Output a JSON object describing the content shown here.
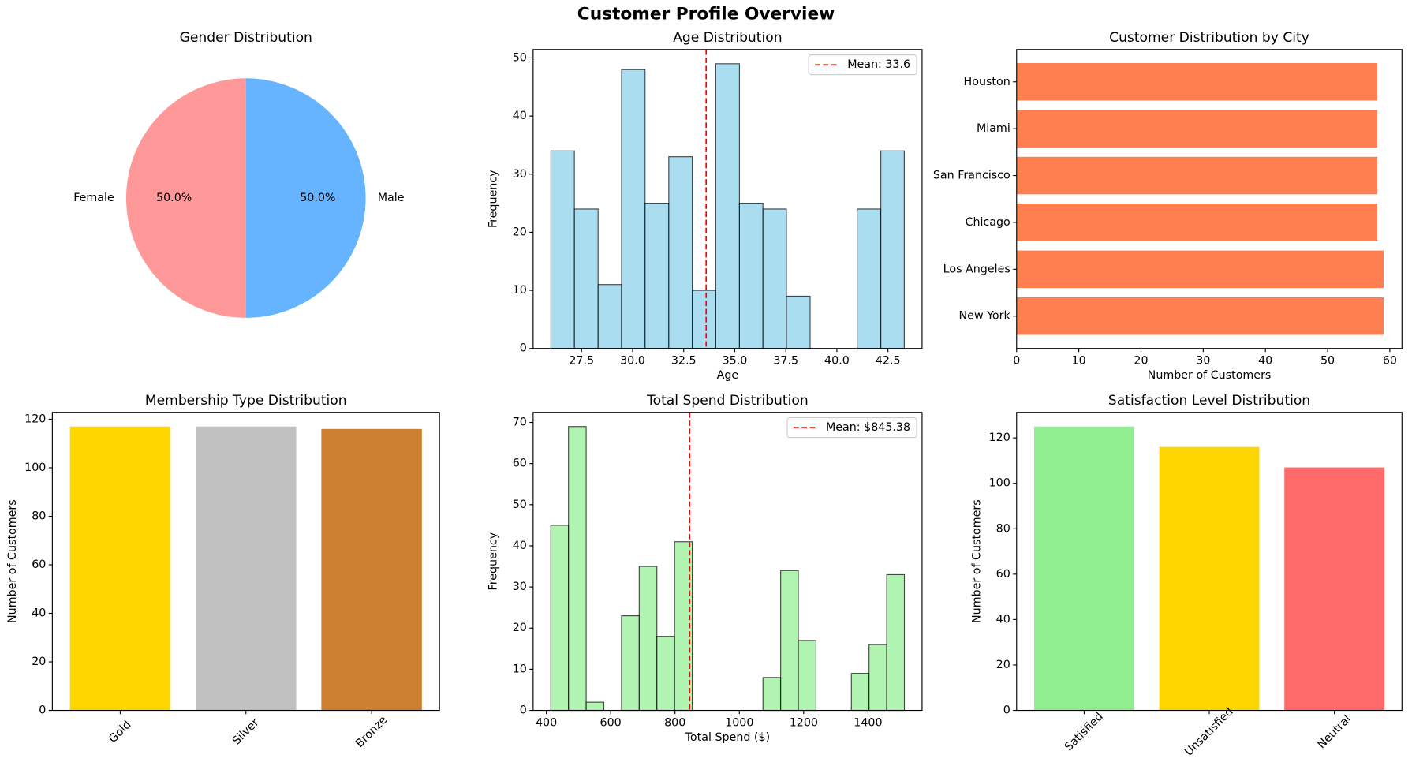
{
  "title": "Customer Profile Overview",
  "chart_data": [
    {
      "type": "pie",
      "title": "Gender Distribution",
      "categories": [
        "Female",
        "Male"
      ],
      "values": [
        50,
        50
      ],
      "value_labels": [
        "50.0%",
        "50.0%"
      ],
      "colors": [
        "#ff9999",
        "#66b3ff"
      ]
    },
    {
      "type": "histogram",
      "title": "Age Distribution",
      "xlabel": "Age",
      "ylabel": "Frequency",
      "color": "#87ceeb",
      "bins": [
        26,
        27.15,
        28.31,
        29.46,
        30.61,
        31.77,
        32.92,
        34.07,
        35.23,
        36.38,
        37.53,
        38.69,
        39.84,
        40.99,
        42.15,
        43.3
      ],
      "values": [
        34,
        24,
        11,
        48,
        25,
        33,
        10,
        49,
        25,
        24,
        9,
        0,
        0,
        24,
        34
      ],
      "mean": 33.6,
      "mean_label": "Mean: 33.6",
      "mean_color": "#ff0000",
      "xlim": [
        25.13,
        44.17
      ],
      "xticks": [
        27.5,
        {
          "value": 30,
          "label": "30.0"
        },
        32.5,
        {
          "value": 35,
          "label": "35.0"
        },
        37.5,
        {
          "value": 40,
          "label": "40.0"
        },
        42.5
      ],
      "ylim": [
        0,
        51.45
      ],
      "yticks": [
        0,
        10,
        20,
        30,
        40,
        50
      ]
    },
    {
      "type": "barh",
      "title": "Customer Distribution by City",
      "xlabel": "Number of Customers",
      "color": "#ff7f50",
      "categories": [
        "New York",
        "Los Angeles",
        "Chicago",
        "San Francisco",
        "Miami",
        "Houston"
      ],
      "values": [
        59,
        59,
        58,
        58,
        58,
        58
      ],
      "xlim": [
        0,
        61.95
      ],
      "xticks": [
        0,
        10,
        20,
        30,
        40,
        50,
        60
      ]
    },
    {
      "type": "bar",
      "title": "Membership Type Distribution",
      "ylabel": "Number of Customers",
      "categories": [
        "Gold",
        "Silver",
        "Bronze"
      ],
      "values": [
        117,
        117,
        116
      ],
      "colors": [
        "#ffd700",
        "#c0c0c0",
        "#cd7f32"
      ],
      "ylim": [
        0,
        122.85
      ],
      "yticks": [
        0,
        20,
        40,
        60,
        80,
        100,
        120
      ]
    },
    {
      "type": "histogram",
      "title": "Total Spend Distribution",
      "xlabel": "Total Spend ($)",
      "ylabel": "Frequency",
      "color": "#90ee90",
      "bins": [
        414,
        468.95,
        523.9,
        578.85,
        633.8,
        688.75,
        743.7,
        798.65,
        853.6,
        908.55,
        963.5,
        1018.45,
        1073.4,
        1128.35,
        1183.3,
        1238.25,
        1293.2,
        1348.15,
        1403.1,
        1458.05,
        1513
      ],
      "values": [
        45,
        69,
        2,
        0,
        23,
        35,
        18,
        41,
        0,
        0,
        0,
        0,
        8,
        34,
        17,
        0,
        0,
        9,
        16,
        33
      ],
      "mean": 845.38,
      "mean_label": "Mean: $845.38",
      "mean_color": "#ff0000",
      "xlim": [
        359.05,
        1567.95
      ],
      "xticks": [
        400,
        600,
        800,
        1000,
        1200,
        1400
      ],
      "ylim": [
        0,
        72.45
      ],
      "yticks": [
        0,
        10,
        20,
        30,
        40,
        50,
        60,
        70
      ]
    },
    {
      "type": "bar",
      "title": "Satisfaction Level Distribution",
      "ylabel": "Number of Customers",
      "categories": [
        "Satisfied",
        "Unsatisfied",
        "Neutral"
      ],
      "values": [
        125,
        116,
        107
      ],
      "colors": [
        "#90ee90",
        "#ffd700",
        "#ff6b6b"
      ],
      "ylim": [
        0,
        131.25
      ],
      "yticks": [
        0,
        20,
        40,
        60,
        80,
        100,
        120
      ]
    }
  ]
}
